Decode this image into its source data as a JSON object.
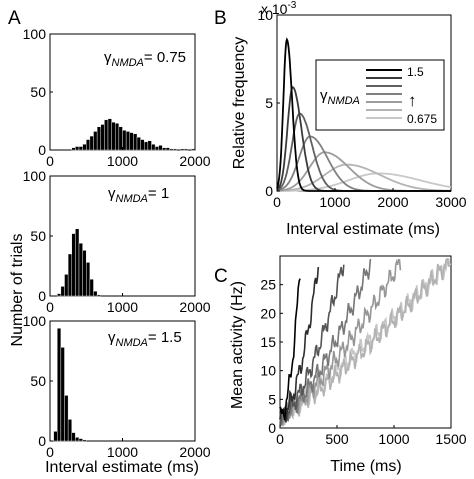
{
  "panel_letters": {
    "a": "A",
    "b": "B",
    "c": "C"
  },
  "panel_a": {
    "ylabel": "Number of trials",
    "xlabel": "Interval estimate (ms)",
    "gamma_symbol": "γ",
    "gamma_subscript": "NMDA"
  },
  "panel_b": {
    "ylabel": "Relative frequency",
    "xlabel": "Interval estimate (ms)",
    "scale_label": "x 10",
    "scale_exponent": "-3",
    "legend_symbol": "γ",
    "legend_subscript": "NMDA",
    "legend_top": "1.5",
    "legend_bottom": "0.675",
    "legend_arrow": "↑"
  },
  "panel_c": {
    "ylabel": "Mean activity (Hz)",
    "xlabel": "Time (ms)"
  },
  "chart_data": [
    {
      "id": "A1",
      "type": "bar",
      "gamma_value": "= 0.75",
      "xlim": [
        0,
        2000
      ],
      "ylim": [
        0,
        100
      ],
      "xticks": [
        "0",
        "1000",
        "2000"
      ],
      "yticks": [
        "0",
        "50",
        "100"
      ],
      "bin_width": 50,
      "x": [
        325,
        375,
        425,
        475,
        525,
        575,
        625,
        675,
        725,
        775,
        825,
        875,
        925,
        975,
        1025,
        1075,
        1125,
        1175,
        1225,
        1275,
        1325,
        1375,
        1425,
        1475,
        1525,
        1575,
        1625,
        1675,
        1725,
        1775,
        1825,
        1875,
        1925,
        1975
      ],
      "values": [
        2,
        3,
        3,
        5,
        9,
        12,
        16,
        20,
        22,
        26,
        27,
        24,
        23,
        20,
        17,
        16,
        15,
        14,
        11,
        9,
        7,
        8,
        5,
        3,
        4,
        2,
        2,
        1,
        1,
        0,
        1,
        1,
        0,
        1
      ]
    },
    {
      "id": "A2",
      "type": "bar",
      "gamma_value": "= 1",
      "xlim": [
        0,
        2000
      ],
      "ylim": [
        0,
        100
      ],
      "xticks": [
        "0",
        "1000",
        "2000"
      ],
      "yticks": [
        "0",
        "50",
        "100"
      ],
      "bin_width": 50,
      "x": [
        125,
        175,
        225,
        275,
        325,
        375,
        425,
        475,
        525,
        575,
        625,
        675
      ],
      "values": [
        2,
        8,
        18,
        35,
        52,
        56,
        44,
        38,
        28,
        14,
        4,
        1
      ]
    },
    {
      "id": "A3",
      "type": "bar",
      "gamma_value": "= 1.5",
      "xlim": [
        0,
        2000
      ],
      "ylim": [
        0,
        100
      ],
      "xticks": [
        "0",
        "1000",
        "2000"
      ],
      "yticks": [
        "0",
        "50",
        "100"
      ],
      "bin_width": 50,
      "x": [
        75,
        125,
        175,
        225,
        275,
        325,
        375,
        425,
        475
      ],
      "values": [
        8,
        94,
        78,
        38,
        18,
        7,
        3,
        2,
        1
      ]
    },
    {
      "id": "B",
      "type": "line",
      "xlim": [
        0,
        3000
      ],
      "ylim": [
        0,
        10
      ],
      "xticks": [
        "0",
        "1000",
        "2000",
        "3000"
      ],
      "yticks": [
        "0",
        "5",
        "10"
      ],
      "series": [
        {
          "gamma": 1.5,
          "color": "#000000",
          "peak_x": 170,
          "peak_y": 8.6,
          "width_left": 60,
          "width_right": 90
        },
        {
          "gamma": 1.35,
          "color": "#3a3a3a",
          "peak_x": 270,
          "peak_y": 5.9,
          "width_left": 90,
          "width_right": 150
        },
        {
          "gamma": 1.2,
          "color": "#606060",
          "peak_x": 390,
          "peak_y": 4.4,
          "width_left": 130,
          "width_right": 210
        },
        {
          "gamma": 1.05,
          "color": "#808080",
          "peak_x": 570,
          "peak_y": 3.1,
          "width_left": 190,
          "width_right": 300
        },
        {
          "gamma": 0.9,
          "color": "#9c9c9c",
          "peak_x": 820,
          "peak_y": 2.2,
          "width_left": 260,
          "width_right": 420
        },
        {
          "gamma": 0.8,
          "color": "#b4b4b4",
          "peak_x": 1200,
          "peak_y": 1.5,
          "width_left": 380,
          "width_right": 580
        },
        {
          "gamma": 0.675,
          "color": "#c8c8c8",
          "peak_x": 1750,
          "peak_y": 1.0,
          "width_left": 520,
          "width_right": 720
        }
      ]
    },
    {
      "id": "C",
      "type": "line",
      "xlim": [
        0,
        1500
      ],
      "ylim": [
        0,
        30
      ],
      "xticks": [
        "0",
        "500",
        "1000",
        "1500"
      ],
      "yticks": [
        "0",
        "5",
        "10",
        "15",
        "20",
        "25"
      ],
      "series": [
        {
          "color": "#000000",
          "x_end": 180,
          "curve": 2.0
        },
        {
          "color": "#2e2e2e",
          "x_end": 340,
          "curve": 1.8
        },
        {
          "color": "#555555",
          "x_end": 560,
          "curve": 1.6
        },
        {
          "color": "#777777",
          "x_end": 800,
          "curve": 1.45
        },
        {
          "color": "#969696",
          "x_end": 1060,
          "curve": 1.3
        },
        {
          "color": "#b2b2b2",
          "x_end": 1480,
          "curve": 1.2
        },
        {
          "color": "#c6c6c6",
          "x_end": 1500,
          "curve": 1.1
        }
      ]
    }
  ]
}
